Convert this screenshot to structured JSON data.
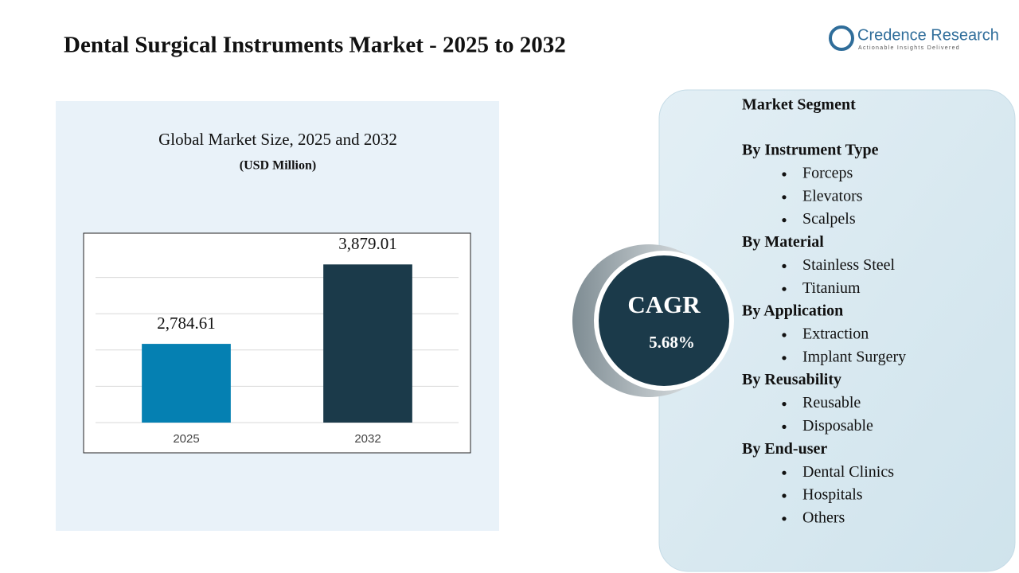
{
  "title": "Dental Surgical Instruments Market - 2025 to 2032",
  "logo": {
    "name": "Credence Research",
    "tagline": "Actionable Insights Delivered"
  },
  "chart_data": {
    "type": "bar",
    "title": "Global Market Size, 2025 and 2032",
    "subtitle": "(USD Million)",
    "categories": [
      "2025",
      "2032"
    ],
    "values": [
      2784.61,
      3879.01
    ],
    "value_labels": [
      "2,784.61",
      "3,879.01"
    ],
    "colors": [
      "#0580b2",
      "#1b3a4a"
    ],
    "ylim": [
      1700,
      4200
    ],
    "yticks": [
      1700,
      2200,
      2700,
      3200,
      3700
    ],
    "grid": true
  },
  "cagr": {
    "label": "CAGR",
    "value": "5.68%"
  },
  "segments": {
    "title": "Market Segment",
    "groups": [
      {
        "name": "By Instrument Type",
        "items": [
          "Forceps",
          "Elevators",
          "Scalpels"
        ]
      },
      {
        "name": "By Material",
        "items": [
          "Stainless Steel",
          "Titanium"
        ]
      },
      {
        "name": "By Application",
        "items": [
          "Extraction",
          "Implant Surgery"
        ]
      },
      {
        "name": "By Reusability",
        "items": [
          "Reusable",
          "Disposable"
        ]
      },
      {
        "name": "By End-user",
        "items": [
          "Dental Clinics",
          "Hospitals",
          "Others"
        ]
      }
    ]
  }
}
